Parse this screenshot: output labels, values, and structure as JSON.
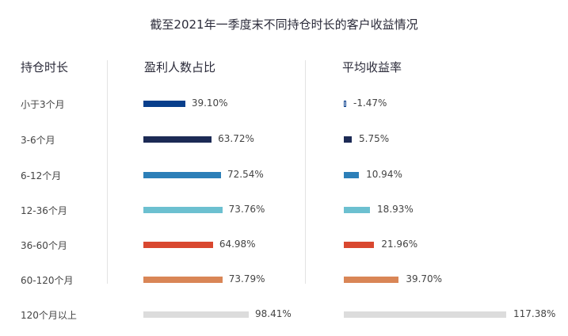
{
  "header": {
    "title": "截至2021年一季度末不同持仓时长的客户收益情况",
    "col_duration": "持仓时长",
    "col_profit_ratio": "盈利人数占比",
    "col_avg_return": "平均收益率"
  },
  "chart_data": {
    "type": "bar",
    "title": "截至2021年一季度末不同持仓时长的客户收益情况",
    "categories": [
      "小于3个月",
      "3-6个月",
      "6-12个月",
      "12-36个月",
      "36-60个月",
      "60-120个月",
      "120个月以上"
    ],
    "series": [
      {
        "name": "盈利人数占比",
        "values": [
          39.1,
          63.72,
          72.54,
          73.76,
          64.98,
          73.79,
          98.41
        ],
        "labels": [
          "39.10%",
          "63.72%",
          "72.54%",
          "73.76%",
          "64.98%",
          "73.79%",
          "98.41%"
        ]
      },
      {
        "name": "平均收益率",
        "values": [
          -1.47,
          5.75,
          10.94,
          18.93,
          21.96,
          39.7,
          117.38
        ],
        "labels": [
          "-1.47%",
          "5.75%",
          "10.94%",
          "18.93%",
          "21.96%",
          "39.70%",
          "117.38%"
        ]
      }
    ],
    "colors": [
      "#083f8c",
      "#1c2a55",
      "#2c7fb8",
      "#6cc0d0",
      "#d9472f",
      "#d98656",
      "#dcdcdc"
    ],
    "grid": false,
    "legend": "none"
  }
}
